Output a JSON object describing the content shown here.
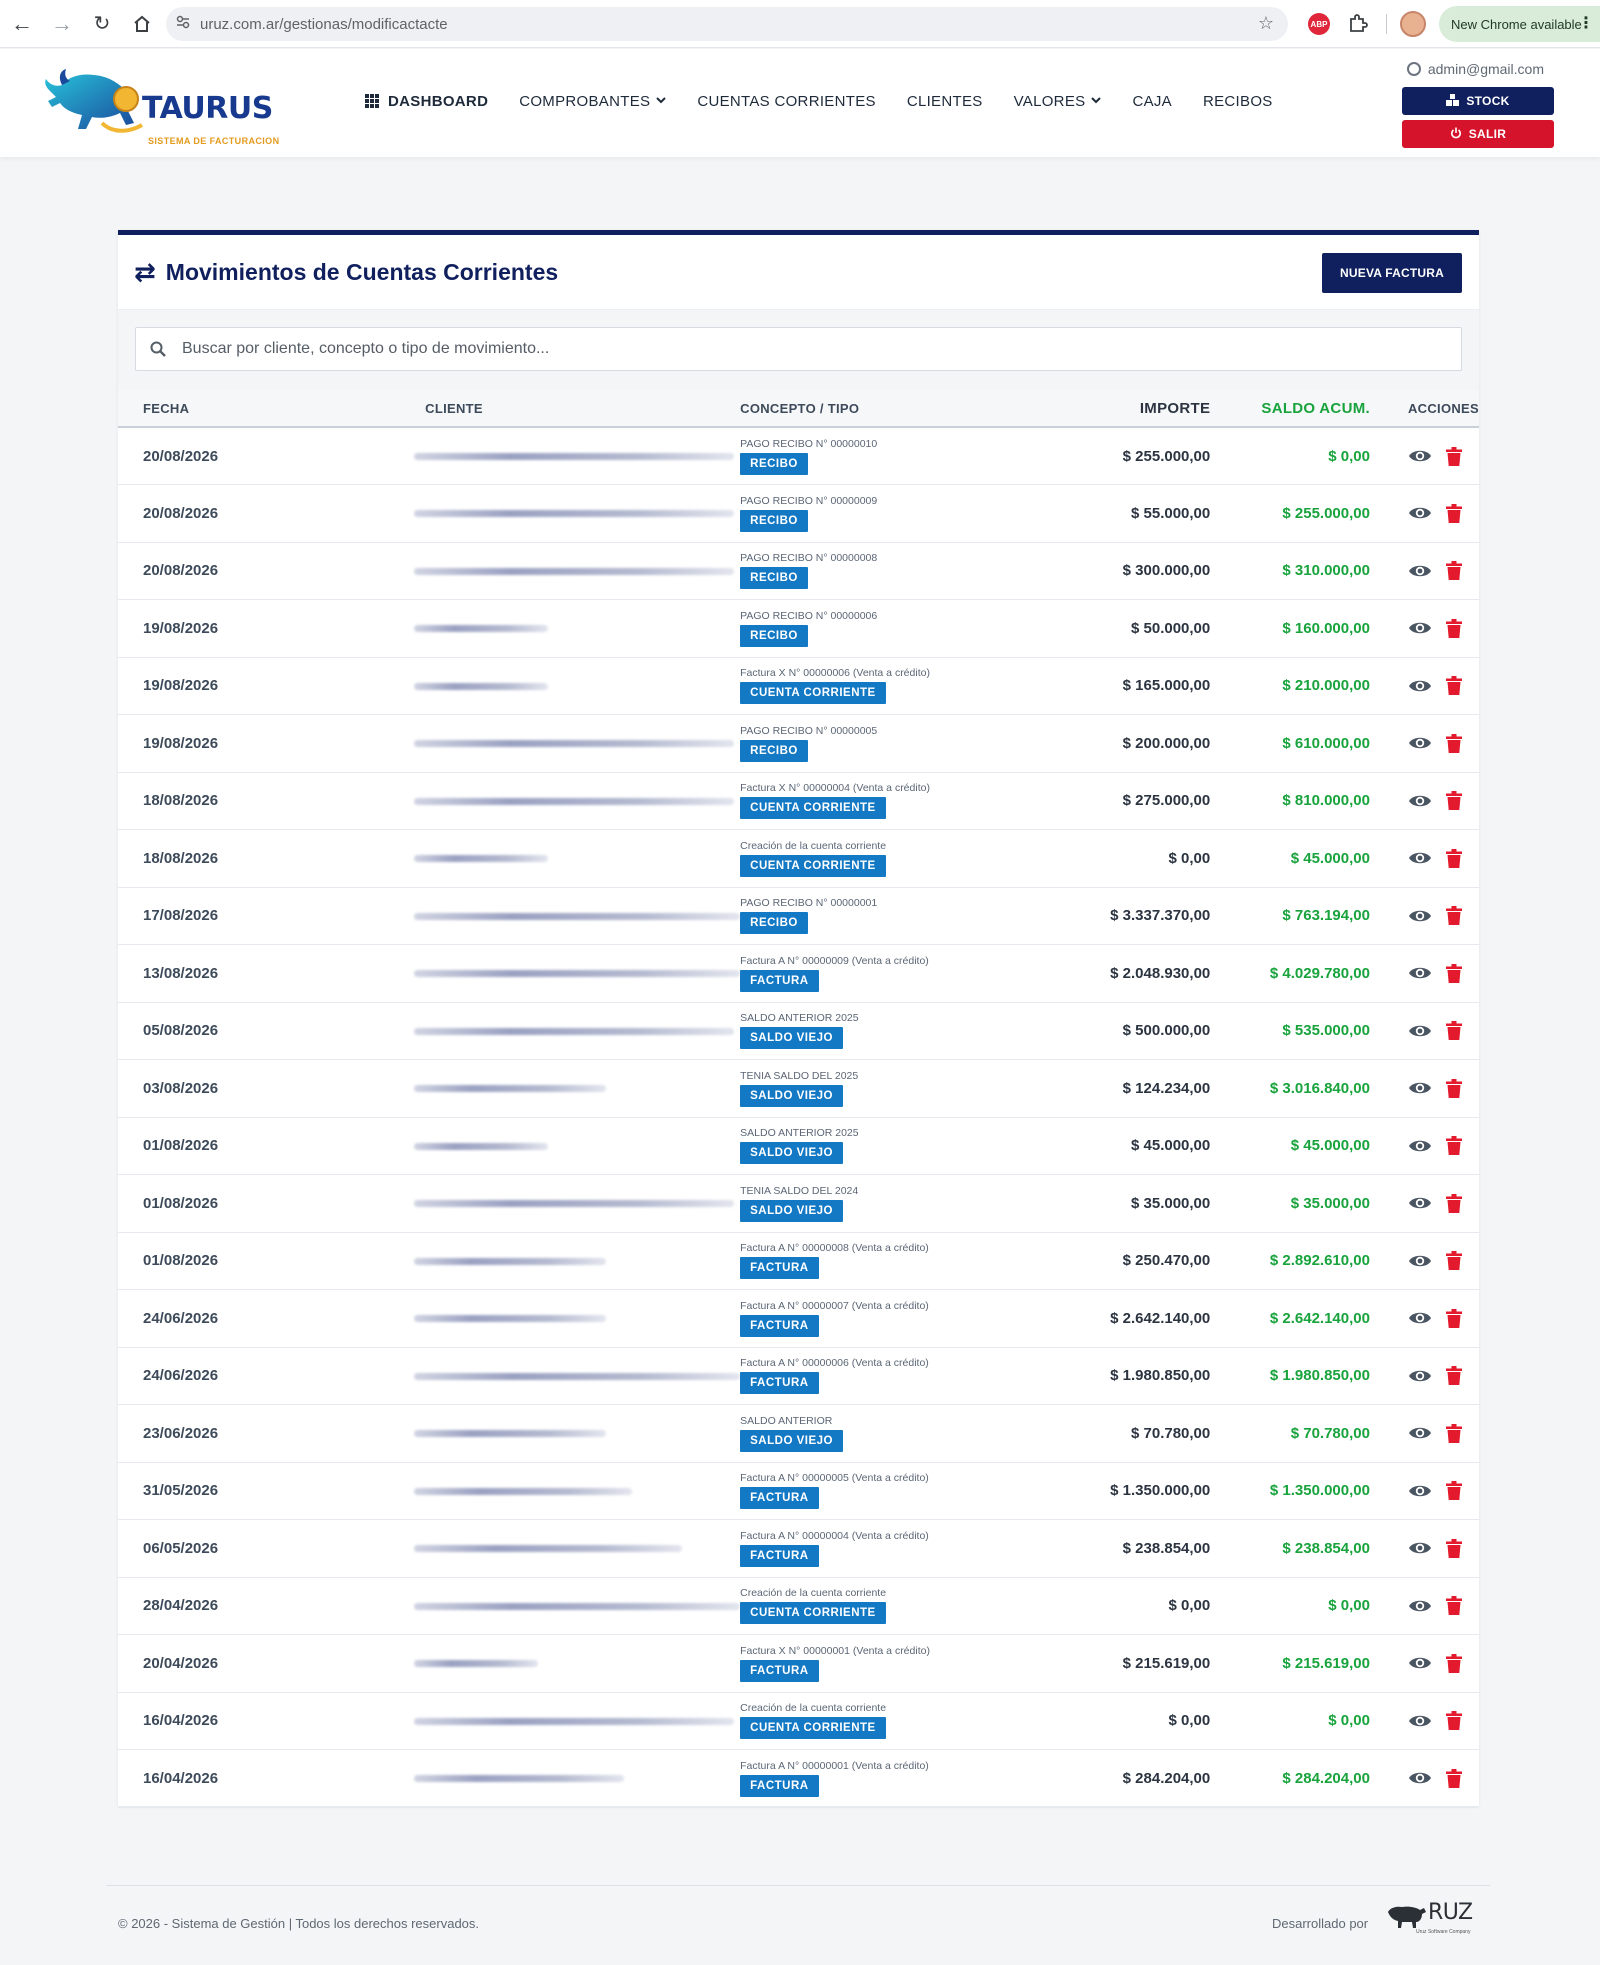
{
  "browser": {
    "url": "uruz.com.ar/gestionas/modificactacte",
    "update_label": "New Chrome available",
    "ext_abp": "ABP"
  },
  "header": {
    "brand": "TAURUS",
    "tagline": "SISTEMA DE FACTURACION",
    "nav": [
      {
        "label": "DASHBOARD"
      },
      {
        "label": "COMPROBANTES"
      },
      {
        "label": "CUENTAS CORRIENTES"
      },
      {
        "label": "CLIENTES"
      },
      {
        "label": "VALORES"
      },
      {
        "label": "CAJA"
      },
      {
        "label": "RECIBOS"
      }
    ],
    "user_email": "admin@gmail.com",
    "stock_label": "STOCK",
    "salir_label": "SALIR"
  },
  "card": {
    "title": "Movimientos de Cuentas Corrientes",
    "new_button": "NUEVA FACTURA",
    "search_placeholder": "Buscar por cliente, concepto o tipo de movimiento..."
  },
  "table": {
    "headers": {
      "fecha": "FECHA",
      "cliente": "CLIENTE",
      "concepto": "CONCEPTO / TIPO",
      "importe": "IMPORTE",
      "saldo": "SALDO ACUM.",
      "acciones": "ACCIONES"
    },
    "rows": [
      {
        "fecha": "20/08/2026",
        "concepto": "PAGO RECIBO N° 00000010",
        "tipo": "RECIBO",
        "importe": "$ 255.000,00",
        "saldo": "$ 0,00"
      },
      {
        "fecha": "20/08/2026",
        "concepto": "PAGO RECIBO N° 00000009",
        "tipo": "RECIBO",
        "importe": "$ 55.000,00",
        "saldo": "$ 255.000,00"
      },
      {
        "fecha": "20/08/2026",
        "concepto": "PAGO RECIBO N° 00000008",
        "tipo": "RECIBO",
        "importe": "$ 300.000,00",
        "saldo": "$ 310.000,00"
      },
      {
        "fecha": "19/08/2026",
        "concepto": "PAGO RECIBO N° 00000006",
        "tipo": "RECIBO",
        "importe": "$ 50.000,00",
        "saldo": "$ 160.000,00"
      },
      {
        "fecha": "19/08/2026",
        "concepto": "Factura X N° 00000006 (Venta a crédito)",
        "tipo": "CUENTA CORRIENTE",
        "importe": "$ 165.000,00",
        "saldo": "$ 210.000,00"
      },
      {
        "fecha": "19/08/2026",
        "concepto": "PAGO RECIBO N° 00000005",
        "tipo": "RECIBO",
        "importe": "$ 200.000,00",
        "saldo": "$ 610.000,00"
      },
      {
        "fecha": "18/08/2026",
        "concepto": "Factura X N° 00000004 (Venta a crédito)",
        "tipo": "CUENTA CORRIENTE",
        "importe": "$ 275.000,00",
        "saldo": "$ 810.000,00"
      },
      {
        "fecha": "18/08/2026",
        "concepto": "Creación de la cuenta corriente",
        "tipo": "CUENTA CORRIENTE",
        "importe": "$ 0,00",
        "saldo": "$ 45.000,00"
      },
      {
        "fecha": "17/08/2026",
        "concepto": "PAGO RECIBO N° 00000001",
        "tipo": "RECIBO",
        "importe": "$ 3.337.370,00",
        "saldo": "$ 763.194,00"
      },
      {
        "fecha": "13/08/2026",
        "concepto": "Factura A N° 00000009 (Venta a crédito)",
        "tipo": "FACTURA",
        "importe": "$ 2.048.930,00",
        "saldo": "$ 4.029.780,00"
      },
      {
        "fecha": "05/08/2026",
        "concepto": "SALDO ANTERIOR 2025",
        "tipo": "SALDO VIEJO",
        "importe": "$ 500.000,00",
        "saldo": "$ 535.000,00"
      },
      {
        "fecha": "03/08/2026",
        "concepto": "TENIA SALDO DEL 2025",
        "tipo": "SALDO VIEJO",
        "importe": "$ 124.234,00",
        "saldo": "$ 3.016.840,00"
      },
      {
        "fecha": "01/08/2026",
        "concepto": "SALDO ANTERIOR 2025",
        "tipo": "SALDO VIEJO",
        "importe": "$ 45.000,00",
        "saldo": "$ 45.000,00"
      },
      {
        "fecha": "01/08/2026",
        "concepto": "TENIA SALDO DEL 2024",
        "tipo": "SALDO VIEJO",
        "importe": "$ 35.000,00",
        "saldo": "$ 35.000,00"
      },
      {
        "fecha": "01/08/2026",
        "concepto": "Factura A N° 00000008 (Venta a crédito)",
        "tipo": "FACTURA",
        "importe": "$ 250.470,00",
        "saldo": "$ 2.892.610,00"
      },
      {
        "fecha": "24/06/2026",
        "concepto": "Factura A N° 00000007 (Venta a crédito)",
        "tipo": "FACTURA",
        "importe": "$ 2.642.140,00",
        "saldo": "$ 2.642.140,00"
      },
      {
        "fecha": "24/06/2026",
        "concepto": "Factura A N° 00000006 (Venta a crédito)",
        "tipo": "FACTURA",
        "importe": "$ 1.980.850,00",
        "saldo": "$ 1.980.850,00"
      },
      {
        "fecha": "23/06/2026",
        "concepto": "SALDO ANTERIOR",
        "tipo": "SALDO VIEJO",
        "importe": "$ 70.780,00",
        "saldo": "$ 70.780,00"
      },
      {
        "fecha": "31/05/2026",
        "concepto": "Factura A N° 00000005 (Venta a crédito)",
        "tipo": "FACTURA",
        "importe": "$ 1.350.000,00",
        "saldo": "$ 1.350.000,00"
      },
      {
        "fecha": "06/05/2026",
        "concepto": "Factura A N° 00000004 (Venta a crédito)",
        "tipo": "FACTURA",
        "importe": "$ 238.854,00",
        "saldo": "$ 238.854,00"
      },
      {
        "fecha": "28/04/2026",
        "concepto": "Creación de la cuenta corriente",
        "tipo": "CUENTA CORRIENTE",
        "importe": "$ 0,00",
        "saldo": "$ 0,00"
      },
      {
        "fecha": "20/04/2026",
        "concepto": "Factura X N° 00000001 (Venta a crédito)",
        "tipo": "FACTURA",
        "importe": "$ 215.619,00",
        "saldo": "$ 215.619,00"
      },
      {
        "fecha": "16/04/2026",
        "concepto": "Creación de la cuenta corriente",
        "tipo": "CUENTA CORRIENTE",
        "importe": "$ 0,00",
        "saldo": "$ 0,00"
      },
      {
        "fecha": "16/04/2026",
        "concepto": "Factura A N° 00000001 (Venta a crédito)",
        "tipo": "FACTURA",
        "importe": "$ 284.204,00",
        "saldo": "$ 284.204,00"
      }
    ]
  },
  "footer": {
    "copyright": "© 2026 - Sistema de Gestión | Todos los derechos reservados.",
    "developed_by": "Desarrollado por",
    "dev_brand": "RUZ",
    "dev_sub": "Uruz Software Company"
  },
  "colors": {
    "navy": "#10205e",
    "danger": "#d5132b",
    "badge": "#1479c5",
    "positive": "#18a33c"
  }
}
